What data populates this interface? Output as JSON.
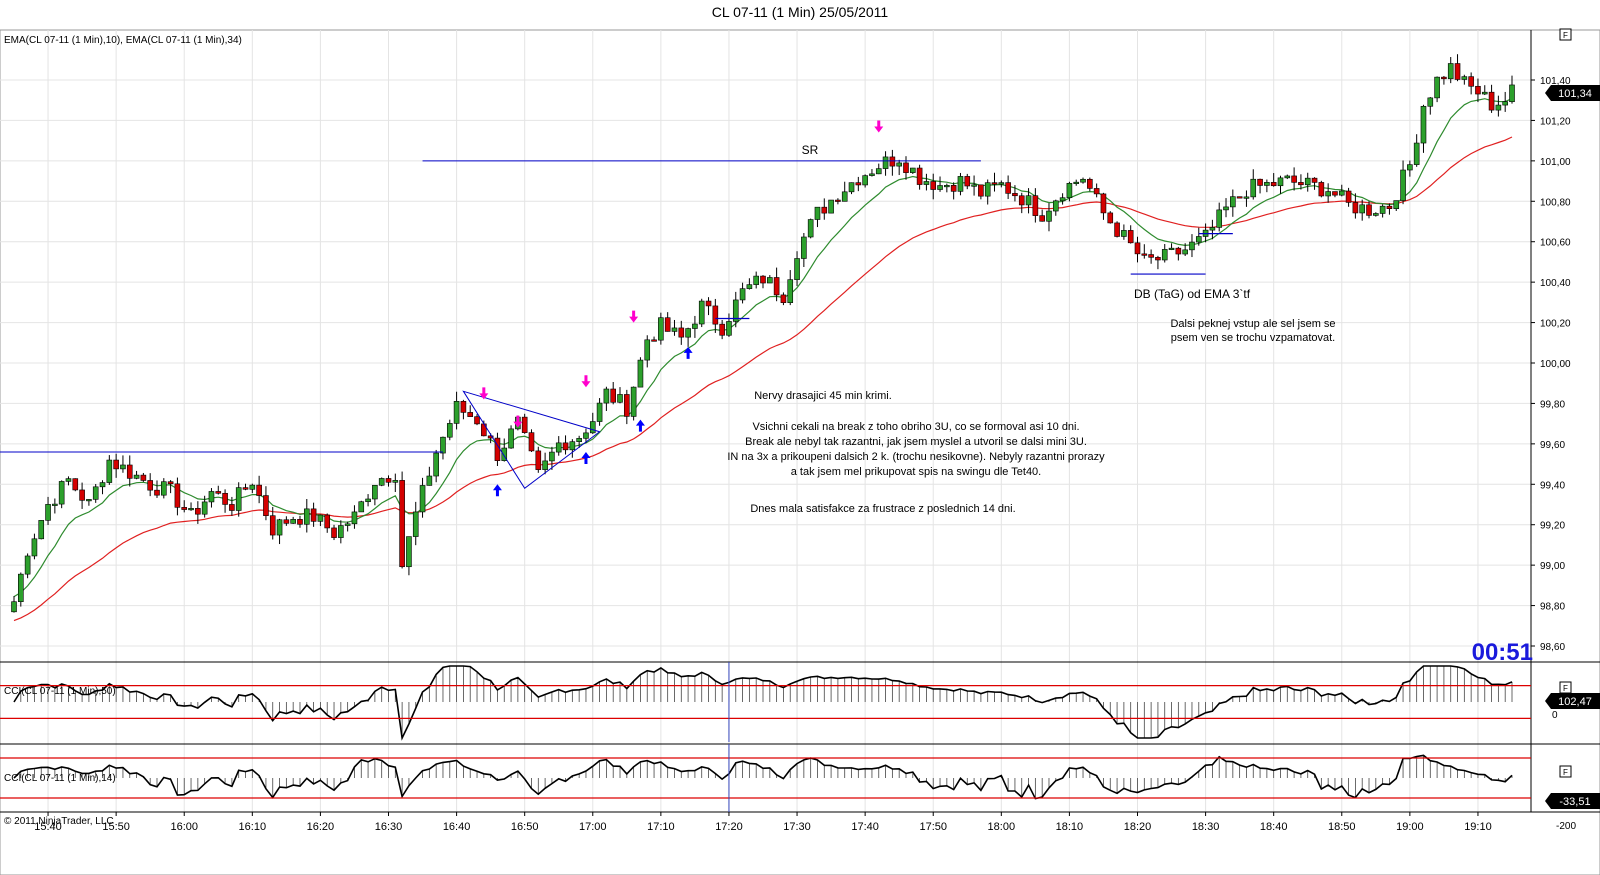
{
  "window_title": "CL 07-11 (1 Min)  25/05/2011",
  "price_panel": {
    "indicator_label": "EMA(CL 07-11 (1 Min),10), EMA(CL 07-11 (1 Min),34)",
    "price_ticks": [
      "101,40",
      "101,20",
      "101,00",
      "100,80",
      "100,60",
      "100,40",
      "100,20",
      "100,00",
      "99,80",
      "99,60",
      "99,40",
      "99,20",
      "99,00",
      "98,80",
      "98,60"
    ],
    "current_price": "101,34",
    "timer": "00:51",
    "sr_label": "SR",
    "db_label": "DB (TaG) od EMA 3`tf",
    "note_right": [
      "Dalsi peknej vstup ale sel jsem se",
      "psem ven se trochu vzpamatovat."
    ],
    "note_center": [
      "Nervy drasajici 45 min krimi.",
      "",
      "Vsichni cekali na break z toho obriho 3U, co se formoval asi 10 dni.",
      "Break ale nebyl tak razantni, jak jsem myslel a utvoril se dalsi mini 3U.",
      "IN na 3x a prikoupeni dalsich 2 k. (trochu nesikovne). Nebyly razantni prorazy",
      "a tak jsem mel prikupovat spis na swingu dle Tet40.",
      "",
      "",
      "Dnes mala satisfakce za frustrace z poslednich 14 dni."
    ]
  },
  "cci50_panel": {
    "label": "CCI(CL 07-11 (1 Min),50)",
    "value": "102,47",
    "zero_tick": "0"
  },
  "cci14_panel": {
    "label": "CCI(CL 07-11 (1 Min),14)",
    "value": "-33,51",
    "low_tick": "-200"
  },
  "copyright": "© 2011 NinjaTrader, LLC",
  "time_ticks": [
    "15:40",
    "15:50",
    "16:00",
    "16:10",
    "16:20",
    "16:30",
    "16:40",
    "16:50",
    "17:00",
    "17:10",
    "17:20",
    "17:30",
    "17:40",
    "17:50",
    "18:00",
    "18:10",
    "18:20",
    "18:30",
    "18:40",
    "18:50",
    "19:00",
    "19:10"
  ],
  "colors": {
    "bull_candle": "#2ca02c",
    "bear_candle": "#d40000",
    "ema_fast": "#2e8b2e",
    "ema_slow": "#e02020",
    "sr_line": "#0000c8",
    "timer": "#1a1adc",
    "arrow_down": "#ff00cc",
    "arrow_up": "#0000ff"
  },
  "chart_data": {
    "type": "candlestick",
    "symbol": "CL 07-11",
    "interval": "1 Min",
    "date": "25/05/2011",
    "y_axis_range": [
      98.55,
      101.5
    ],
    "time_range": [
      "15:35",
      "19:15"
    ],
    "sr_level": 101.0,
    "support_level_left": 99.56,
    "db_level": 100.44,
    "last_price": 101.34,
    "anchors": [
      [
        "15:35",
        98.82
      ],
      [
        "15:37",
        99.08
      ],
      [
        "15:40",
        99.3
      ],
      [
        "15:43",
        99.42
      ],
      [
        "15:46",
        99.3
      ],
      [
        "15:49",
        99.52
      ],
      [
        "15:52",
        99.46
      ],
      [
        "15:55",
        99.4
      ],
      [
        "15:58",
        99.36
      ],
      [
        "16:01",
        99.24
      ],
      [
        "16:04",
        99.36
      ],
      [
        "16:07",
        99.3
      ],
      [
        "16:10",
        99.42
      ],
      [
        "16:13",
        99.18
      ],
      [
        "16:16",
        99.24
      ],
      [
        "16:19",
        99.24
      ],
      [
        "16:22",
        99.16
      ],
      [
        "16:25",
        99.24
      ],
      [
        "16:28",
        99.42
      ],
      [
        "16:31",
        99.46
      ],
      [
        "16:32",
        99.0
      ],
      [
        "16:34",
        99.25
      ],
      [
        "16:37",
        99.56
      ],
      [
        "16:40",
        99.78
      ],
      [
        "16:43",
        99.72
      ],
      [
        "16:46",
        99.55
      ],
      [
        "16:49",
        99.7
      ],
      [
        "16:52",
        99.44
      ],
      [
        "16:55",
        99.6
      ],
      [
        "16:58",
        99.64
      ],
      [
        "17:00",
        99.72
      ],
      [
        "17:02",
        99.85
      ],
      [
        "17:05",
        99.78
      ],
      [
        "17:08",
        100.12
      ],
      [
        "17:10",
        100.18
      ],
      [
        "17:13",
        100.12
      ],
      [
        "17:16",
        100.28
      ],
      [
        "17:19",
        100.18
      ],
      [
        "17:22",
        100.35
      ],
      [
        "17:25",
        100.42
      ],
      [
        "17:28",
        100.34
      ],
      [
        "17:30",
        100.56
      ],
      [
        "17:33",
        100.74
      ],
      [
        "17:36",
        100.84
      ],
      [
        "17:39",
        100.92
      ],
      [
        "17:42",
        100.98
      ],
      [
        "17:45",
        101.02
      ],
      [
        "17:48",
        100.92
      ],
      [
        "17:51",
        100.88
      ],
      [
        "17:54",
        100.9
      ],
      [
        "17:57",
        100.84
      ],
      [
        "18:00",
        100.88
      ],
      [
        "18:03",
        100.82
      ],
      [
        "18:06",
        100.74
      ],
      [
        "18:09",
        100.86
      ],
      [
        "18:12",
        100.92
      ],
      [
        "18:15",
        100.74
      ],
      [
        "18:18",
        100.62
      ],
      [
        "18:21",
        100.5
      ],
      [
        "18:24",
        100.52
      ],
      [
        "18:27",
        100.56
      ],
      [
        "18:30",
        100.62
      ],
      [
        "18:33",
        100.76
      ],
      [
        "18:36",
        100.86
      ],
      [
        "18:39",
        100.88
      ],
      [
        "18:42",
        100.9
      ],
      [
        "18:45",
        100.88
      ],
      [
        "18:48",
        100.86
      ],
      [
        "18:51",
        100.78
      ],
      [
        "18:54",
        100.76
      ],
      [
        "18:57",
        100.78
      ],
      [
        "19:00",
        100.98
      ],
      [
        "19:02",
        101.28
      ],
      [
        "19:04",
        101.4
      ],
      [
        "19:06",
        101.46
      ],
      [
        "19:08",
        101.38
      ],
      [
        "19:10",
        101.34
      ],
      [
        "19:12",
        101.28
      ],
      [
        "19:14",
        101.3
      ],
      [
        "19:15",
        101.34
      ]
    ],
    "series": [
      {
        "name": "EMA(CL 07-11 (1 Min),10)",
        "period": 10
      },
      {
        "name": "EMA(CL 07-11 (1 Min),34)",
        "period": 34
      }
    ],
    "cci50": {
      "upper": 100,
      "lower": -100,
      "last": 102.47
    },
    "cci14": {
      "upper": 200,
      "lower": -200,
      "last": -33.51
    },
    "down_arrows": [
      "16:44",
      "16:49",
      "16:59",
      "17:06",
      "17:42"
    ],
    "up_arrows": [
      "16:46",
      "16:59",
      "17:07",
      "17:14"
    ]
  }
}
